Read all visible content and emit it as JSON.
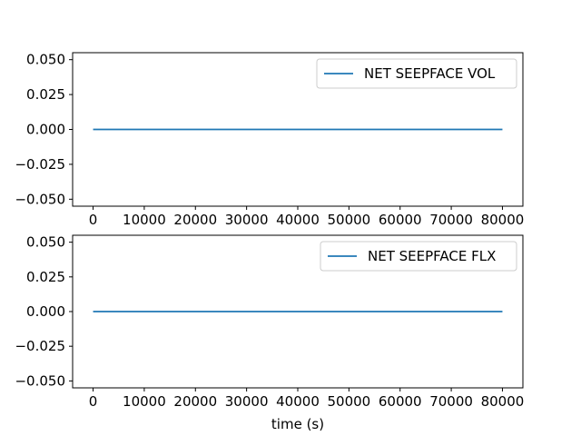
{
  "chart_data": [
    {
      "type": "line",
      "title": "",
      "xlabel": "",
      "ylabel": "",
      "xlim": [
        -4000,
        84000
      ],
      "ylim": [
        -0.055,
        0.055
      ],
      "xticks": [
        0,
        10000,
        20000,
        30000,
        40000,
        50000,
        60000,
        70000,
        80000
      ],
      "xtick_labels": [
        "0",
        "10000",
        "20000",
        "30000",
        "40000",
        "50000",
        "60000",
        "70000",
        "80000"
      ],
      "yticks": [
        0.05,
        0.025,
        0.0,
        -0.025,
        -0.05
      ],
      "ytick_labels": [
        "0.050",
        "0.025",
        "0.000",
        "−0.025",
        "−0.050"
      ],
      "grid": false,
      "legend_position": "upper-right",
      "series": [
        {
          "name": "NET SEEPFACE VOL",
          "color": "#1f77b4",
          "x": [
            0,
            80000
          ],
          "y": [
            0,
            0
          ]
        }
      ]
    },
    {
      "type": "line",
      "title": "",
      "xlabel": "time (s)",
      "ylabel": "",
      "xlim": [
        -4000,
        84000
      ],
      "ylim": [
        -0.055,
        0.055
      ],
      "xticks": [
        0,
        10000,
        20000,
        30000,
        40000,
        50000,
        60000,
        70000,
        80000
      ],
      "xtick_labels": [
        "0",
        "10000",
        "20000",
        "30000",
        "40000",
        "50000",
        "60000",
        "70000",
        "80000"
      ],
      "yticks": [
        0.05,
        0.025,
        0.0,
        -0.025,
        -0.05
      ],
      "ytick_labels": [
        "0.050",
        "0.025",
        "0.000",
        "−0.025",
        "−0.050"
      ],
      "grid": false,
      "legend_position": "upper-right",
      "series": [
        {
          "name": "NET SEEPFACE FLX",
          "color": "#1f77b4",
          "x": [
            0,
            80000
          ],
          "y": [
            0,
            0
          ]
        }
      ]
    }
  ]
}
